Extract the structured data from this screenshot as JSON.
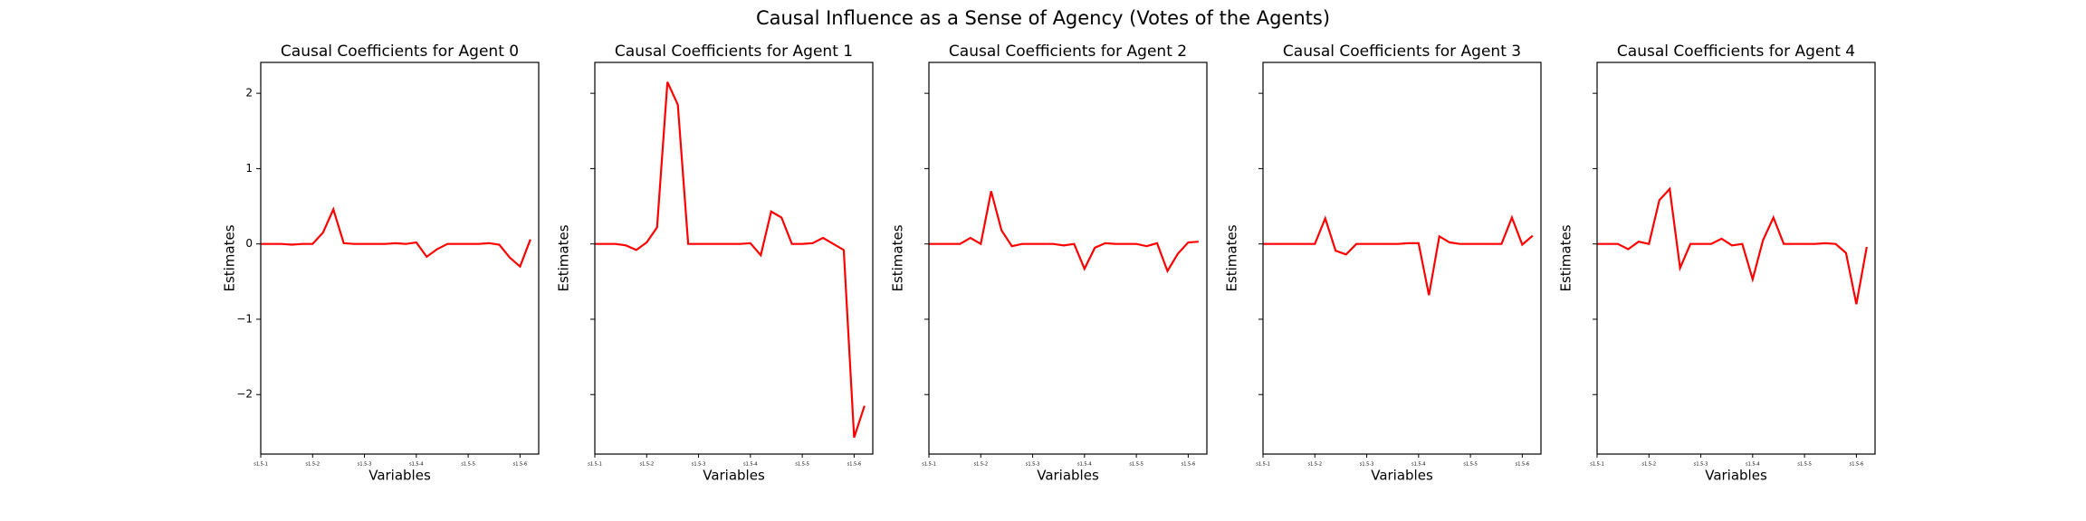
{
  "title": "Causal Influence as a Sense of Agency (Votes of the Agents)",
  "chart_data": [
    {
      "type": "line",
      "title": "Causal Coefficients for Agent 0",
      "x_label": "Variables",
      "y_label": "Estimates",
      "x": [
        0,
        1,
        2,
        3,
        4,
        5,
        6,
        7,
        8,
        9,
        10,
        11,
        12,
        13,
        14,
        15,
        16,
        17,
        18,
        19,
        20,
        21,
        22,
        23,
        24,
        25,
        26
      ],
      "series": [
        {
          "color": "#ff0000",
          "values": [
            0,
            0,
            0,
            -0.01,
            0,
            0,
            0.15,
            0.46,
            0.01,
            0,
            0,
            0,
            0,
            0.01,
            0,
            0.02,
            -0.17,
            -0.07,
            0,
            0,
            0,
            0,
            0.01,
            -0.01,
            -0.18,
            -0.3,
            0.06
          ]
        }
      ],
      "xlim": [
        0,
        26.8
      ],
      "xticks": [
        {
          "value": 0,
          "label": "s1.5-1"
        },
        {
          "value": 5,
          "label": "s1.5-2"
        },
        {
          "value": 10,
          "label": "s1.5-3"
        },
        {
          "value": 15,
          "label": "s1.5-4"
        },
        {
          "value": 20,
          "label": "s1.5-5"
        },
        {
          "value": 25,
          "label": "s1.5-6"
        }
      ],
      "ylim": [
        -2.79,
        2.41
      ],
      "yticks": [
        {
          "value": -2,
          "label": "−2"
        },
        {
          "value": -1,
          "label": "−1"
        },
        0,
        1,
        2
      ]
    },
    {
      "type": "line",
      "title": "Causal Coefficients for Agent 1",
      "x_label": "Variables",
      "y_label": "Estimates",
      "x": [
        0,
        1,
        2,
        3,
        4,
        5,
        6,
        7,
        8,
        9,
        10,
        11,
        12,
        13,
        14,
        15,
        16,
        17,
        18,
        19,
        20,
        21,
        22,
        23,
        24,
        25,
        26
      ],
      "series": [
        {
          "color": "#ff0000",
          "values": [
            0,
            0,
            0,
            -0.02,
            -0.08,
            0.02,
            0.22,
            2.15,
            1.85,
            0,
            0,
            0,
            0,
            0,
            0,
            0.01,
            -0.15,
            0.43,
            0.35,
            0,
            0,
            0.01,
            0.08,
            0,
            -0.08,
            -2.57,
            -2.15
          ]
        }
      ],
      "xlim": [
        0,
        26.8
      ],
      "xticks": [
        {
          "value": 0,
          "label": "s1.5-1"
        },
        {
          "value": 5,
          "label": "s1.5-2"
        },
        {
          "value": 10,
          "label": "s1.5-3"
        },
        {
          "value": 15,
          "label": "s1.5-4"
        },
        {
          "value": 20,
          "label": "s1.5-5"
        },
        {
          "value": 25,
          "label": "s1.5-6"
        }
      ],
      "ylim": [
        -2.79,
        2.41
      ],
      "yticks": [
        -2,
        -1,
        0,
        1,
        2
      ]
    },
    {
      "type": "line",
      "title": "Causal Coefficients for Agent 2",
      "x_label": "Variables",
      "y_label": "Estimates",
      "x": [
        0,
        1,
        2,
        3,
        4,
        5,
        6,
        7,
        8,
        9,
        10,
        11,
        12,
        13,
        14,
        15,
        16,
        17,
        18,
        19,
        20,
        21,
        22,
        23,
        24,
        25,
        26
      ],
      "series": [
        {
          "color": "#ff0000",
          "values": [
            0,
            0,
            0,
            0,
            0.08,
            0,
            0.7,
            0.18,
            -0.03,
            0,
            0,
            0,
            0,
            -0.02,
            0,
            -0.33,
            -0.05,
            0.01,
            0,
            0,
            0,
            -0.03,
            0.01,
            -0.36,
            -0.13,
            0.02,
            0.03
          ]
        }
      ],
      "xlim": [
        0,
        26.8
      ],
      "xticks": [
        {
          "value": 0,
          "label": "s1.5-1"
        },
        {
          "value": 5,
          "label": "s1.5-2"
        },
        {
          "value": 10,
          "label": "s1.5-3"
        },
        {
          "value": 15,
          "label": "s1.5-4"
        },
        {
          "value": 20,
          "label": "s1.5-5"
        },
        {
          "value": 25,
          "label": "s1.5-6"
        }
      ],
      "ylim": [
        -2.79,
        2.41
      ],
      "yticks": [
        -2,
        -1,
        0,
        1,
        2
      ]
    },
    {
      "type": "line",
      "title": "Causal Coefficients for Agent 3",
      "x_label": "Variables",
      "y_label": "Estimates",
      "x": [
        0,
        1,
        2,
        3,
        4,
        5,
        6,
        7,
        8,
        9,
        10,
        11,
        12,
        13,
        14,
        15,
        16,
        17,
        18,
        19,
        20,
        21,
        22,
        23,
        24,
        25,
        26
      ],
      "series": [
        {
          "color": "#ff0000",
          "values": [
            0,
            0,
            0,
            0,
            0,
            0,
            0.34,
            -0.09,
            -0.14,
            0,
            0,
            0,
            0,
            0,
            0.01,
            0.01,
            -0.68,
            0.1,
            0.02,
            0,
            0,
            0,
            0,
            0,
            0.35,
            -0.01,
            0.11
          ]
        }
      ],
      "xlim": [
        0,
        26.8
      ],
      "xticks": [
        {
          "value": 0,
          "label": "s1.5-1"
        },
        {
          "value": 5,
          "label": "s1.5-2"
        },
        {
          "value": 10,
          "label": "s1.5-3"
        },
        {
          "value": 15,
          "label": "s1.5-4"
        },
        {
          "value": 20,
          "label": "s1.5-5"
        },
        {
          "value": 25,
          "label": "s1.5-6"
        }
      ],
      "ylim": [
        -2.79,
        2.41
      ],
      "yticks": [
        -2,
        -1,
        0,
        1,
        2
      ]
    },
    {
      "type": "line",
      "title": "Causal Coefficients for Agent 4",
      "x_label": "Variables",
      "y_label": "Estimates",
      "x": [
        0,
        1,
        2,
        3,
        4,
        5,
        6,
        7,
        8,
        9,
        10,
        11,
        12,
        13,
        14,
        15,
        16,
        17,
        18,
        19,
        20,
        21,
        22,
        23,
        24,
        25,
        26
      ],
      "series": [
        {
          "color": "#ff0000",
          "values": [
            0,
            0,
            0,
            -0.07,
            0.03,
            0,
            0.58,
            0.73,
            -0.32,
            0,
            0,
            0,
            0.07,
            -0.02,
            0,
            -0.47,
            0.05,
            0.35,
            0,
            0,
            0,
            0,
            0.01,
            0,
            -0.12,
            -0.8,
            -0.04
          ]
        }
      ],
      "xlim": [
        0,
        26.8
      ],
      "xticks": [
        {
          "value": 0,
          "label": "s1.5-1"
        },
        {
          "value": 5,
          "label": "s1.5-2"
        },
        {
          "value": 10,
          "label": "s1.5-3"
        },
        {
          "value": 15,
          "label": "s1.5-4"
        },
        {
          "value": 20,
          "label": "s1.5-5"
        },
        {
          "value": 25,
          "label": "s1.5-6"
        }
      ],
      "ylim": [
        -2.79,
        2.41
      ],
      "yticks": [
        -2,
        -1,
        0,
        1,
        2
      ]
    }
  ]
}
